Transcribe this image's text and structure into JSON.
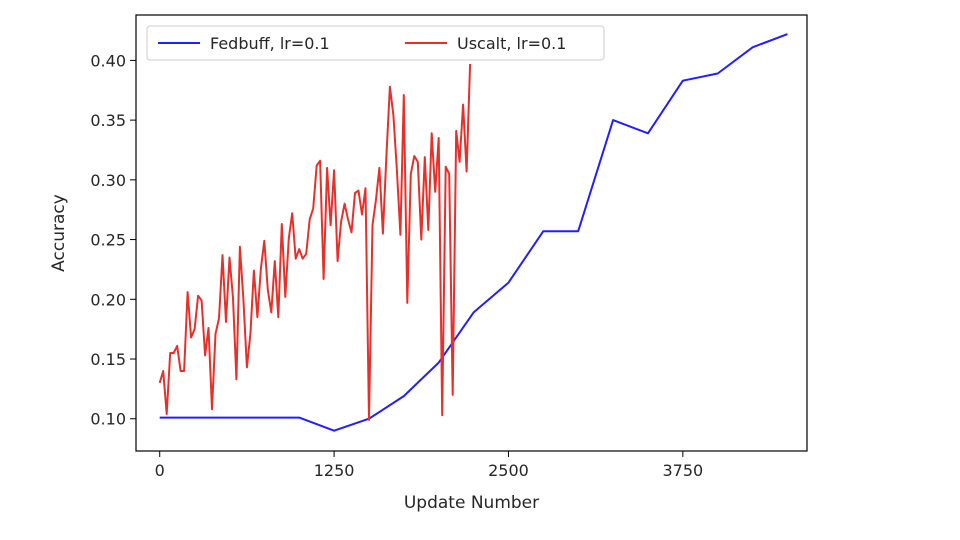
{
  "chart_data": {
    "type": "line",
    "title": "",
    "xlabel": "Update Number",
    "ylabel": "Accuracy",
    "xlim": [
      -170,
      4640
    ],
    "ylim": [
      0.073,
      0.438
    ],
    "xticks": [
      0,
      1250,
      2500,
      3750
    ],
    "xtick_labels": [
      "0",
      "1250",
      "2500",
      "3750"
    ],
    "yticks": [
      0.1,
      0.15,
      0.2,
      0.25,
      0.3,
      0.35,
      0.4
    ],
    "ytick_labels": [
      "0.10",
      "0.15",
      "0.20",
      "0.25",
      "0.30",
      "0.35",
      "0.40"
    ],
    "grid": false,
    "legend_position": "top-left",
    "legend_columns": 2,
    "series": [
      {
        "name": "Fedbuff, lr=0.1",
        "color": "#1f1fff",
        "x": [
          0,
          250,
          500,
          750,
          1000,
          1250,
          1500,
          1750,
          2000,
          2250,
          2500,
          2750,
          3000,
          3250,
          3500,
          3750,
          4000,
          4250,
          4500
        ],
        "y": [
          0.101,
          0.101,
          0.101,
          0.101,
          0.101,
          0.09,
          0.1,
          0.119,
          0.147,
          0.189,
          0.214,
          0.257,
          0.257,
          0.35,
          0.339,
          0.383,
          0.389,
          0.411,
          0.422
        ]
      },
      {
        "name": "Uscalt, lr=0.1",
        "color": "#e8302a",
        "x": [
          0,
          25,
          50,
          75,
          100,
          125,
          150,
          175,
          200,
          225,
          250,
          275,
          300,
          325,
          350,
          375,
          400,
          425,
          450,
          475,
          500,
          525,
          550,
          575,
          600,
          625,
          650,
          675,
          700,
          725,
          750,
          775,
          800,
          825,
          850,
          875,
          900,
          925,
          950,
          975,
          1000,
          1025,
          1050,
          1075,
          1100,
          1125,
          1150,
          1175,
          1200,
          1225,
          1250,
          1275,
          1300,
          1325,
          1350,
          1375,
          1400,
          1425,
          1450,
          1475,
          1500,
          1525,
          1550,
          1575,
          1600,
          1625,
          1650,
          1675,
          1700,
          1725,
          1750,
          1775,
          1800,
          1825,
          1850,
          1875,
          1900,
          1925,
          1950,
          1975,
          2000,
          2025,
          2050,
          2075,
          2100,
          2125,
          2150,
          2175,
          2200,
          2225
        ],
        "y": [
          0.13,
          0.14,
          0.104,
          0.155,
          0.155,
          0.161,
          0.14,
          0.14,
          0.206,
          0.168,
          0.175,
          0.203,
          0.199,
          0.153,
          0.176,
          0.108,
          0.171,
          0.184,
          0.237,
          0.181,
          0.235,
          0.201,
          0.133,
          0.244,
          0.2,
          0.143,
          0.171,
          0.224,
          0.185,
          0.226,
          0.249,
          0.208,
          0.189,
          0.232,
          0.185,
          0.263,
          0.202,
          0.251,
          0.272,
          0.234,
          0.242,
          0.234,
          0.238,
          0.267,
          0.276,
          0.312,
          0.316,
          0.217,
          0.31,
          0.262,
          0.308,
          0.232,
          0.265,
          0.28,
          0.267,
          0.256,
          0.289,
          0.291,
          0.271,
          0.293,
          0.099,
          0.262,
          0.283,
          0.31,
          0.255,
          0.32,
          0.378,
          0.354,
          0.308,
          0.254,
          0.371,
          0.197,
          0.305,
          0.32,
          0.315,
          0.25,
          0.319,
          0.258,
          0.339,
          0.29,
          0.335,
          0.103,
          0.311,
          0.305,
          0.12,
          0.341,
          0.315,
          0.363,
          0.307,
          0.397
        ]
      }
    ]
  }
}
